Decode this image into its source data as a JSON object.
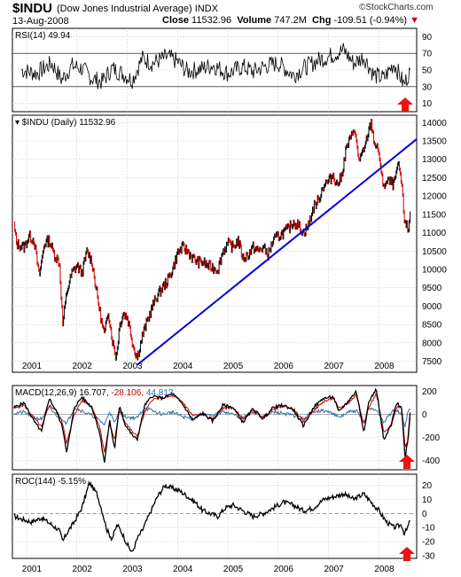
{
  "header": {
    "symbol": "$INDU",
    "name": "(Dow Jones Industrial Average) INDX",
    "date": "13-Aug-2008",
    "close_label": "Close",
    "close_value": "11532.96",
    "volume_label": "Volume",
    "volume_value": "747.2M",
    "chg_label": "Chg",
    "chg_value": "-109.51 (-0.94%)",
    "chg_marker": "▼",
    "logo": "©StockCharts.com"
  },
  "colors": {
    "price": "#000000",
    "price_down": "#cc0000",
    "trendline": "#0000dd",
    "macd_signal": "#cc0000",
    "macd_hist": "#2e6fa8",
    "macd_label_blue": "#2e6fa8",
    "arrow": "#ee1111",
    "grid": "#bbbbbb"
  },
  "chart_data": [
    {
      "type": "line",
      "title": "RSI(14) 49.94",
      "label": "RSI(14)",
      "last_value": "49.94",
      "ylim": [
        0,
        100
      ],
      "y_ticks": [
        90,
        70,
        50,
        30,
        10
      ],
      "reference_lines": [
        70,
        30
      ],
      "grid": true,
      "x": [
        2000.9,
        2001.2,
        2001.5,
        2001.7,
        2001.9,
        2002.1,
        2002.3,
        2002.5,
        2002.7,
        2002.9,
        2003.1,
        2003.3,
        2003.5,
        2003.8,
        2004.0,
        2004.2,
        2004.5,
        2004.7,
        2005.0,
        2005.3,
        2005.5,
        2005.8,
        2006.0,
        2006.3,
        2006.5,
        2006.8,
        2007.0,
        2007.3,
        2007.5,
        2007.7,
        2007.9,
        2008.1,
        2008.3,
        2008.5,
        2008.62
      ],
      "values": [
        50,
        46,
        58,
        38,
        55,
        52,
        40,
        36,
        52,
        46,
        38,
        64,
        58,
        66,
        60,
        48,
        52,
        56,
        46,
        54,
        48,
        56,
        58,
        44,
        52,
        62,
        66,
        74,
        58,
        66,
        44,
        40,
        58,
        32,
        49.94
      ]
    },
    {
      "type": "line",
      "title": "$INDU (Daily) 11532.96",
      "label": "$INDU (Daily)",
      "last_value": "11532.96",
      "ylim": [
        7200,
        14200
      ],
      "y_ticks": [
        14000,
        13500,
        13000,
        12500,
        12000,
        11500,
        11000,
        10500,
        10000,
        9500,
        9000,
        8500,
        8000,
        7500
      ],
      "x_tick_labels": [
        "2001",
        "2002",
        "2003",
        "2004",
        "2005",
        "2006",
        "2007",
        "2008"
      ],
      "grid": true,
      "x": [
        2000.75,
        2000.8,
        2000.95,
        2001.05,
        2001.15,
        2001.25,
        2001.35,
        2001.45,
        2001.55,
        2001.65,
        2001.72,
        2001.8,
        2001.9,
        2002.0,
        2002.1,
        2002.2,
        2002.3,
        2002.4,
        2002.5,
        2002.55,
        2002.62,
        2002.7,
        2002.78,
        2002.85,
        2002.92,
        2003.0,
        2003.05,
        2003.12,
        2003.2,
        2003.3,
        2003.4,
        2003.5,
        2003.6,
        2003.7,
        2003.8,
        2003.9,
        2004.0,
        2004.1,
        2004.2,
        2004.3,
        2004.4,
        2004.5,
        2004.6,
        2004.7,
        2004.8,
        2004.9,
        2005.0,
        2005.1,
        2005.2,
        2005.3,
        2005.4,
        2005.5,
        2005.6,
        2005.7,
        2005.8,
        2005.9,
        2006.0,
        2006.1,
        2006.2,
        2006.3,
        2006.4,
        2006.5,
        2006.6,
        2006.7,
        2006.8,
        2006.9,
        2007.0,
        2007.1,
        2007.15,
        2007.25,
        2007.35,
        2007.45,
        2007.5,
        2007.6,
        2007.7,
        2007.78,
        2007.85,
        2007.9,
        2007.95,
        2008.0,
        2008.05,
        2008.1,
        2008.2,
        2008.3,
        2008.35,
        2008.4,
        2008.45,
        2008.5,
        2008.55,
        2008.58,
        2008.62
      ],
      "values": [
        11200,
        10700,
        10600,
        10900,
        10800,
        9800,
        10700,
        10800,
        10400,
        10200,
        8500,
        9400,
        9900,
        10100,
        9900,
        10500,
        10200,
        9300,
        8500,
        8200,
        8900,
        8100,
        7600,
        8500,
        8800,
        8700,
        8400,
        7900,
        7600,
        8200,
        8600,
        9000,
        9300,
        9500,
        9700,
        10000,
        10450,
        10600,
        10500,
        10300,
        10200,
        10200,
        10100,
        10050,
        10000,
        10500,
        10700,
        10600,
        10800,
        10300,
        10400,
        10600,
        10500,
        10600,
        10400,
        10800,
        10900,
        11000,
        11100,
        11300,
        11200,
        11000,
        11200,
        11700,
        11900,
        12300,
        12400,
        12600,
        12300,
        12500,
        13300,
        13600,
        13900,
        13000,
        13200,
        13700,
        14000,
        13500,
        13300,
        13200,
        12500,
        12300,
        12400,
        12300,
        12700,
        12800,
        12300,
        11400,
        11200,
        11000,
        11532.96
      ],
      "trendline": {
        "x": [
          2003.2,
          2008.75
        ],
        "values": [
          7400,
          13550
        ]
      }
    },
    {
      "type": "line",
      "title": "MACD(12,26,9) 16.707, -28.106, 44.813",
      "label": "MACD(12,26,9)",
      "macd_value": "16.707",
      "signal_value": "-28.106",
      "hist_value": "44.813",
      "ylim": [
        -480,
        250
      ],
      "y_ticks": [
        200,
        0,
        -200,
        -400
      ],
      "grid": true,
      "x": [
        2000.75,
        2000.95,
        2001.15,
        2001.3,
        2001.45,
        2001.6,
        2001.72,
        2001.8,
        2001.95,
        2002.1,
        2002.3,
        2002.45,
        2002.55,
        2002.65,
        2002.75,
        2002.85,
        2002.95,
        2003.1,
        2003.2,
        2003.35,
        2003.5,
        2003.7,
        2003.9,
        2004.1,
        2004.3,
        2004.5,
        2004.7,
        2004.9,
        2005.1,
        2005.3,
        2005.5,
        2005.7,
        2005.9,
        2006.1,
        2006.3,
        2006.5,
        2006.7,
        2006.9,
        2007.1,
        2007.2,
        2007.4,
        2007.55,
        2007.7,
        2007.8,
        2007.95,
        2008.1,
        2008.25,
        2008.35,
        2008.45,
        2008.52,
        2008.58,
        2008.62
      ],
      "macd": [
        60,
        100,
        -60,
        -150,
        140,
        20,
        -120,
        -330,
        60,
        150,
        60,
        -150,
        -420,
        -50,
        -300,
        80,
        -80,
        -180,
        -220,
        80,
        160,
        140,
        180,
        90,
        -50,
        10,
        -60,
        80,
        60,
        -70,
        50,
        -40,
        60,
        80,
        40,
        -100,
        60,
        140,
        150,
        20,
        120,
        200,
        -150,
        110,
        220,
        -230,
        -80,
        100,
        60,
        -380,
        -200,
        16.707
      ],
      "signal": [
        50,
        80,
        -30,
        -110,
        80,
        30,
        -80,
        -250,
        0,
        120,
        70,
        -100,
        -330,
        -80,
        -220,
        40,
        -60,
        -150,
        -190,
        20,
        130,
        140,
        160,
        110,
        -10,
        0,
        -40,
        50,
        60,
        -40,
        30,
        -20,
        40,
        70,
        50,
        -60,
        30,
        110,
        140,
        50,
        100,
        170,
        -80,
        60,
        180,
        -160,
        -100,
        60,
        70,
        -280,
        -230,
        -28.106
      ],
      "histogram": [
        10,
        20,
        -30,
        -40,
        60,
        -10,
        -40,
        -80,
        60,
        30,
        -10,
        -50,
        -90,
        30,
        -80,
        40,
        -20,
        -30,
        -30,
        60,
        30,
        0,
        20,
        -20,
        -40,
        10,
        -20,
        30,
        0,
        -30,
        20,
        -20,
        20,
        10,
        -10,
        -40,
        30,
        30,
        10,
        -30,
        20,
        30,
        -70,
        50,
        40,
        -70,
        20,
        40,
        -10,
        -100,
        30,
        44.813
      ]
    },
    {
      "type": "line",
      "title": "ROC(144) -5.15%",
      "label": "ROC(144)",
      "last_value": "-5.15%",
      "ylim": [
        -32,
        28
      ],
      "y_ticks": [
        20,
        10,
        0,
        -10,
        -20,
        -30
      ],
      "reference_lines": [
        0
      ],
      "x_tick_labels": [
        "2001",
        "2002",
        "2003",
        "2004",
        "2005",
        "2006",
        "2007",
        "2008"
      ],
      "grid": true,
      "x": [
        2000.75,
        2000.9,
        2001.1,
        2001.3,
        2001.5,
        2001.65,
        2001.72,
        2001.8,
        2001.95,
        2002.1,
        2002.25,
        2002.4,
        2002.5,
        2002.6,
        2002.7,
        2002.8,
        2002.9,
        2003.0,
        2003.1,
        2003.2,
        2003.3,
        2003.45,
        2003.6,
        2003.75,
        2003.9,
        2004.05,
        2004.2,
        2004.35,
        2004.5,
        2004.65,
        2004.8,
        2004.95,
        2005.1,
        2005.3,
        2005.5,
        2005.7,
        2005.9,
        2006.1,
        2006.3,
        2006.5,
        2006.7,
        2006.9,
        2007.1,
        2007.3,
        2007.5,
        2007.7,
        2007.85,
        2008.0,
        2008.15,
        2008.3,
        2008.45,
        2008.5,
        2008.55,
        2008.62
      ],
      "values": [
        -2,
        -4,
        -6,
        -3,
        -8,
        -12,
        -20,
        -14,
        -6,
        4,
        22,
        14,
        2,
        -12,
        -18,
        -8,
        -14,
        -22,
        -28,
        -18,
        -12,
        0,
        12,
        20,
        18,
        16,
        12,
        8,
        2,
        0,
        -2,
        4,
        6,
        2,
        -2,
        0,
        4,
        8,
        6,
        2,
        4,
        10,
        12,
        14,
        10,
        14,
        8,
        2,
        -6,
        -10,
        -8,
        -14,
        -12,
        -5.15
      ]
    }
  ]
}
